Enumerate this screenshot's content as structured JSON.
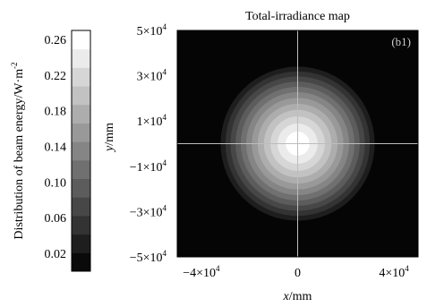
{
  "chart_data": {
    "type": "heatmap",
    "title": "Total-irradiance map",
    "panel_label": "(b1)",
    "xlabel_var": "x",
    "xlabel_unit": "/mm",
    "ylabel_var": "y",
    "ylabel_unit": "/mm",
    "xlim": [
      -50000,
      50000
    ],
    "ylim": [
      -50000,
      50000
    ],
    "x_ticks": [
      {
        "base": "−4×10",
        "exp": "4"
      },
      {
        "base": "0",
        "exp": ""
      },
      {
        "base": "4×10",
        "exp": "4"
      }
    ],
    "x_tick_values": [
      -40000,
      0,
      40000
    ],
    "y_ticks": [
      {
        "value": 50000,
        "base": "5×10",
        "exp": "4"
      },
      {
        "value": 30000,
        "base": "3×10",
        "exp": "4"
      },
      {
        "value": 10000,
        "base": "1×10",
        "exp": "4"
      },
      {
        "value": -10000,
        "base": "−1×10",
        "exp": "4"
      },
      {
        "value": -30000,
        "base": "−3×10",
        "exp": "4"
      },
      {
        "value": -50000,
        "base": "−5×10",
        "exp": "4"
      }
    ],
    "colorbar": {
      "label_text": "Distribution of beam energy/W·m",
      "label_exp": "-2",
      "min": 0.0,
      "max": 0.27,
      "tick_labels": [
        "0.26",
        "0.22",
        "0.18",
        "0.14",
        "0.10",
        "0.06",
        "0.02"
      ],
      "levels": 13
    },
    "beam": {
      "center_x": 0,
      "center_y": 0,
      "peak_energy": 0.26,
      "outer_radius_fraction": 0.64
    },
    "crosshair": true,
    "colors": {
      "background": "#050505",
      "crosshair": "#bdbdbd",
      "beam_peak": "#ffffff"
    }
  }
}
